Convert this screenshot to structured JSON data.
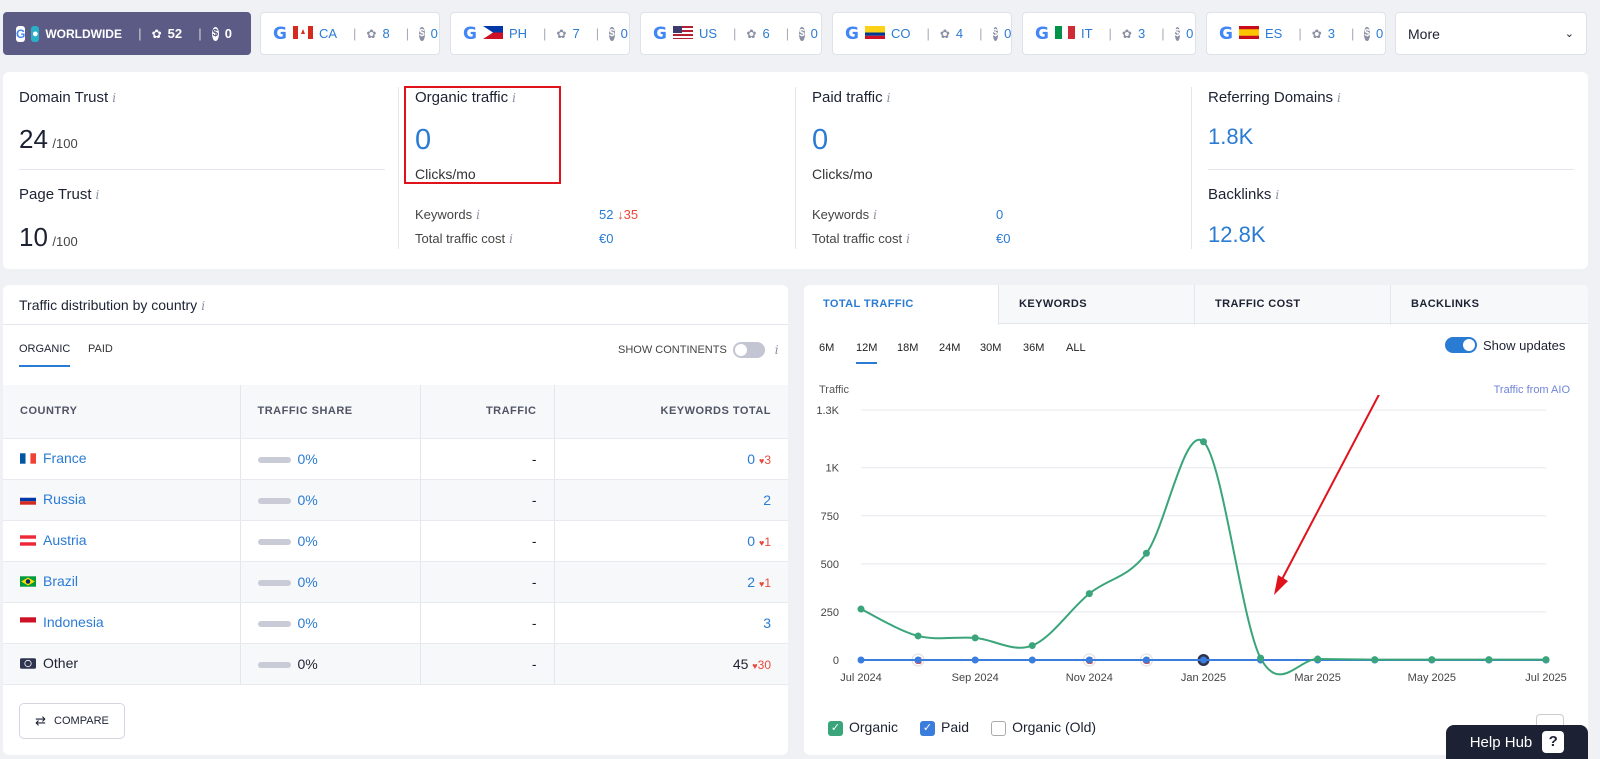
{
  "country_tabs": [
    {
      "name": "WORLDWIDE",
      "keywords": "52",
      "paid": "0",
      "active": true
    },
    {
      "code": "CA",
      "keywords": "8",
      "paid": "0"
    },
    {
      "code": "PH",
      "keywords": "7",
      "paid": "0"
    },
    {
      "code": "US",
      "keywords": "6",
      "paid": "0"
    },
    {
      "code": "CO",
      "keywords": "4",
      "paid": "0"
    },
    {
      "code": "IT",
      "keywords": "3",
      "paid": "0"
    },
    {
      "code": "ES",
      "keywords": "3",
      "paid": "0"
    }
  ],
  "more_label": "More",
  "metrics": {
    "domain_trust": {
      "label": "Domain Trust",
      "value": "24",
      "suffix": "/100"
    },
    "page_trust": {
      "label": "Page Trust",
      "value": "10",
      "suffix": "/100"
    },
    "organic": {
      "label": "Organic traffic",
      "value": "0",
      "unit": "Clicks/mo",
      "keywords_label": "Keywords",
      "keywords_value": "52",
      "keywords_change": "35",
      "cost_label": "Total traffic cost",
      "cost_value": "€0"
    },
    "paid": {
      "label": "Paid traffic",
      "value": "0",
      "unit": "Clicks/mo",
      "keywords_label": "Keywords",
      "keywords_value": "0",
      "cost_label": "Total traffic cost",
      "cost_value": "€0"
    },
    "referring": {
      "label": "Referring Domains",
      "value": "1.8K"
    },
    "backlinks": {
      "label": "Backlinks",
      "value": "12.8K"
    }
  },
  "distribution": {
    "title": "Traffic distribution by country",
    "tabs": [
      "ORGANIC",
      "PAID"
    ],
    "show_continents": "SHOW CONTINENTS",
    "columns": [
      "COUNTRY",
      "TRAFFIC SHARE",
      "TRAFFIC",
      "KEYWORDS TOTAL"
    ],
    "rows": [
      {
        "country": "France",
        "share": "0%",
        "traffic": "-",
        "keywords": "0",
        "change": "3"
      },
      {
        "country": "Russia",
        "share": "0%",
        "traffic": "-",
        "keywords": "2",
        "change": ""
      },
      {
        "country": "Austria",
        "share": "0%",
        "traffic": "-",
        "keywords": "0",
        "change": "1"
      },
      {
        "country": "Brazil",
        "share": "0%",
        "traffic": "-",
        "keywords": "2",
        "change": "1"
      },
      {
        "country": "Indonesia",
        "share": "0%",
        "traffic": "-",
        "keywords": "3",
        "change": ""
      },
      {
        "country": "Other",
        "share": "0%",
        "traffic": "-",
        "keywords": "45",
        "change": "30"
      }
    ],
    "compare_label": "COMPARE"
  },
  "chart_tabs": [
    "TOTAL TRAFFIC",
    "KEYWORDS",
    "TRAFFIC COST",
    "BACKLINKS"
  ],
  "periods": [
    "6M",
    "12M",
    "18M",
    "24M",
    "30M",
    "36M",
    "ALL"
  ],
  "show_updates": "Show updates",
  "traffic_from_aio": "Traffic from AIO",
  "legend": [
    "Organic",
    "Paid",
    "Organic (Old)"
  ],
  "help_hub": "Help Hub",
  "chart_data": {
    "type": "line",
    "ylabel": "Traffic",
    "y_ticks": [
      "1.3K",
      "1K",
      "750",
      "500",
      "250",
      "0"
    ],
    "ylim": [
      0,
      1300
    ],
    "x_tick_labels": [
      "Jul 2024",
      "Sep 2024",
      "Nov 2024",
      "Jan 2025",
      "Mar 2025",
      "May 2025",
      "Jul 2025"
    ],
    "x": [
      "2024-07",
      "2024-08",
      "2024-09",
      "2024-10",
      "2024-11",
      "2024-12",
      "2025-01",
      "2025-02",
      "2025-03",
      "2025-04",
      "2025-05",
      "2025-06",
      "2025-07"
    ],
    "series": [
      {
        "name": "Organic",
        "color": "#3aa57a",
        "values": [
          265,
          125,
          115,
          75,
          345,
          555,
          1135,
          10,
          5,
          2,
          2,
          2,
          2
        ]
      },
      {
        "name": "Paid",
        "color": "#3b7ddd",
        "values": [
          0,
          0,
          0,
          0,
          0,
          0,
          0,
          0,
          0,
          0,
          0,
          0,
          0
        ]
      }
    ]
  }
}
